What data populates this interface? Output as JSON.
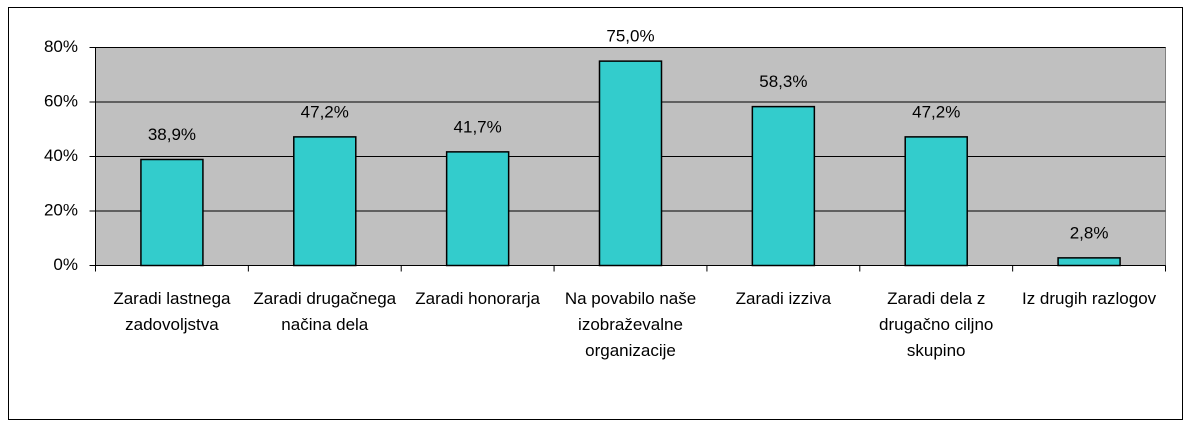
{
  "chart_data": {
    "type": "bar",
    "categories": [
      "Zaradi lastnega zadovoljstva",
      "Zaradi drugačnega načina dela",
      "Zaradi honorarja",
      "Na povabilo naše izobraževalne organizacije",
      "Zaradi izziva",
      "Zaradi dela z drugačno ciljno skupino",
      "Iz drugih razlogov"
    ],
    "values": [
      38.9,
      47.2,
      41.7,
      75.0,
      58.3,
      47.2,
      2.8
    ],
    "value_labels": [
      "38,9%",
      "47,2%",
      "41,7%",
      "75,0%",
      "58,3%",
      "47,2%",
      "2,8%"
    ],
    "color": "#33cccc",
    "ylim": [
      0,
      80
    ],
    "yticks": [
      {
        "value": 0,
        "label": "0%"
      },
      {
        "value": 20,
        "label": "20%"
      },
      {
        "value": 40,
        "label": "40%"
      },
      {
        "value": 60,
        "label": "60%"
      },
      {
        "value": 80,
        "label": "80%"
      }
    ],
    "grid": true
  }
}
